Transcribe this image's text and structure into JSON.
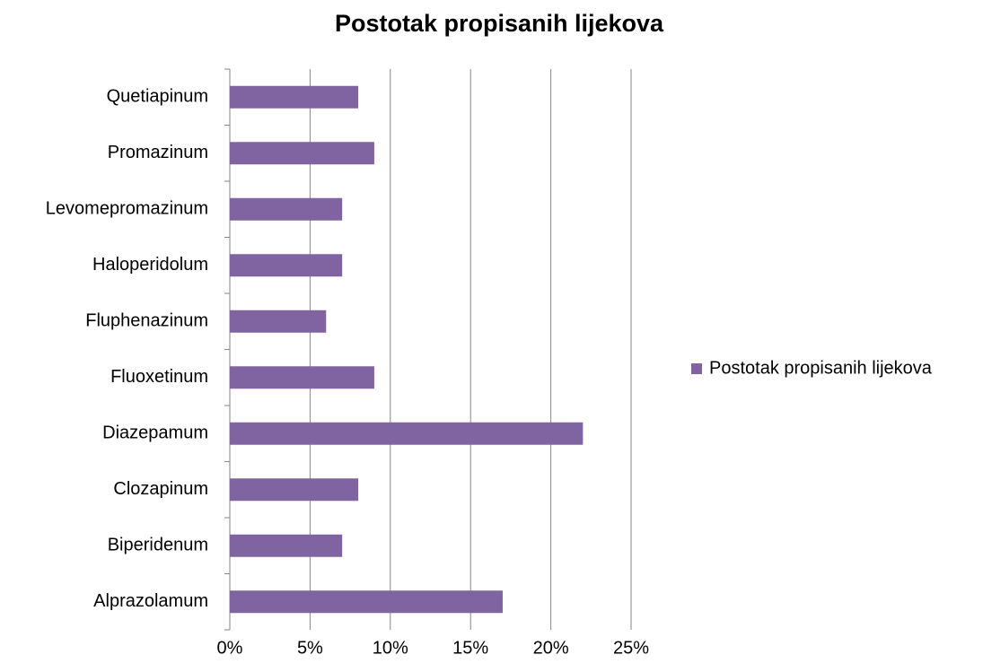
{
  "chart_data": {
    "type": "hbar",
    "title": "Postotak propisanih lijekova",
    "categories": [
      "Alprazolamum",
      "Biperidenum",
      "Clozapinum",
      "Diazepamum",
      "Fluoxetinum",
      "Fluphenazinum",
      "Haloperidolum",
      "Levomepromazinum",
      "Promazinum",
      "Quetiapinum"
    ],
    "series": [
      {
        "name": "Postotak propisanih lijekova",
        "color": "#8064a2",
        "values": [
          17,
          7,
          8,
          22,
          9,
          6,
          7,
          7,
          9,
          8
        ]
      }
    ],
    "xlim": [
      0,
      25
    ],
    "xticks": [
      {
        "value": 0,
        "label": "0%"
      },
      {
        "value": 5,
        "label": "5%"
      },
      {
        "value": 10,
        "label": "10%"
      },
      {
        "value": 15,
        "label": "15%"
      },
      {
        "value": 20,
        "label": "20%"
      },
      {
        "value": 25,
        "label": "25%"
      }
    ],
    "grid": true,
    "legend": "right"
  }
}
